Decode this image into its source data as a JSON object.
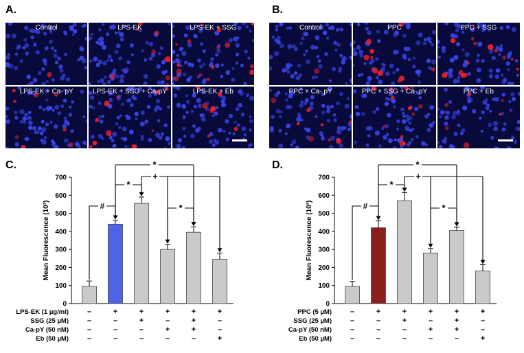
{
  "panels": {
    "a_label": "A.",
    "b_label": "B.",
    "c_label": "C.",
    "d_label": "D."
  },
  "micrographs_a": {
    "labels": [
      "Control",
      "LPS-EK",
      "LPS-EK + SSG",
      "LPS-EK + Ca- pY",
      "LPS-EK + SSG + Ca-pY",
      "LPS-EK + Eb"
    ],
    "red_intensity": [
      0.05,
      0.45,
      0.7,
      0.35,
      0.55,
      0.3
    ]
  },
  "micrographs_b": {
    "labels": [
      "Control",
      "PPC",
      "PPC + SSG",
      "PPC + Ca- pY",
      "PPC + SSG + Ca- pY",
      "PPC + Eb"
    ],
    "red_intensity": [
      0.05,
      0.45,
      0.7,
      0.35,
      0.55,
      0.25
    ]
  },
  "colors": {
    "bar_grey": "#c9cbcb",
    "bar_blue": "#4d64e6",
    "bar_darkred": "#8c1f1c",
    "nucleus_blue": "#3a44e8",
    "stain_red": "#e8222a"
  },
  "chart_data": [
    {
      "type": "bar",
      "title": "",
      "ylabel": "Mean Fluorescence (10³)",
      "ylim": [
        0,
        700
      ],
      "yticks": [
        "0",
        "100",
        "200",
        "300",
        "400",
        "500",
        "600",
        "700"
      ],
      "categories": [
        "1",
        "2",
        "3",
        "4",
        "5",
        "6"
      ],
      "values": [
        95,
        440,
        555,
        300,
        395,
        245
      ],
      "errors": [
        30,
        22,
        35,
        28,
        30,
        35
      ],
      "highlight_index": 1,
      "highlight_color": "#4d64e6",
      "conditions": [
        {
          "label": "LPS-EK (1 µg/ml)",
          "marks": [
            "–",
            "+",
            "+",
            "+",
            "+",
            "+"
          ]
        },
        {
          "label": "SSG (25 µM)",
          "marks": [
            "–",
            "–",
            "+",
            "–",
            "+",
            "–"
          ]
        },
        {
          "label": "Ca-pY (50 nM)",
          "marks": [
            "–",
            "–",
            "–",
            "+",
            "+",
            "–"
          ]
        },
        {
          "label": "Eb  (50 µM)",
          "marks": [
            "–",
            "–",
            "–",
            "–",
            "–",
            "+"
          ]
        }
      ],
      "annotations": [
        {
          "symbol": "#",
          "from": 0,
          "to": 1
        },
        {
          "symbol": "*",
          "from": 1,
          "to": 2
        },
        {
          "symbol": "*",
          "from": 3,
          "to": 4
        },
        {
          "symbol": "+",
          "from": 2,
          "to": [
            3,
            5
          ]
        },
        {
          "symbol": "*",
          "from": 1,
          "to": 4
        }
      ]
    },
    {
      "type": "bar",
      "title": "",
      "ylabel": "Mean Fluorescence (10³)",
      "ylim": [
        0,
        700
      ],
      "yticks": [
        "0",
        "100",
        "200",
        "300",
        "400",
        "500",
        "600",
        "700"
      ],
      "categories": [
        "1",
        "2",
        "3",
        "4",
        "5",
        "6"
      ],
      "values": [
        95,
        420,
        570,
        280,
        405,
        180
      ],
      "errors": [
        28,
        38,
        45,
        25,
        18,
        35
      ],
      "highlight_index": 1,
      "highlight_color": "#8c1f1c",
      "conditions": [
        {
          "label": "PPC (5 µM)",
          "marks": [
            "–",
            "+",
            "+",
            "+",
            "+",
            "+"
          ]
        },
        {
          "label": "SSG (25 µM)",
          "marks": [
            "–",
            "–",
            "+",
            "–",
            "+",
            "–"
          ]
        },
        {
          "label": "Ca-pY (50 nM)",
          "marks": [
            "–",
            "–",
            "–",
            "+",
            "+",
            "–"
          ]
        },
        {
          "label": "Eb  (50 µM)",
          "marks": [
            "–",
            "–",
            "–",
            "–",
            "–",
            "+"
          ]
        }
      ],
      "annotations": [
        {
          "symbol": "#",
          "from": 0,
          "to": 1
        },
        {
          "symbol": "*",
          "from": 1,
          "to": 2
        },
        {
          "symbol": "*",
          "from": 3,
          "to": 4
        },
        {
          "symbol": "+",
          "from": 2,
          "to": [
            3,
            5
          ]
        },
        {
          "symbol": "*",
          "from": 1,
          "to": 4
        }
      ]
    }
  ]
}
